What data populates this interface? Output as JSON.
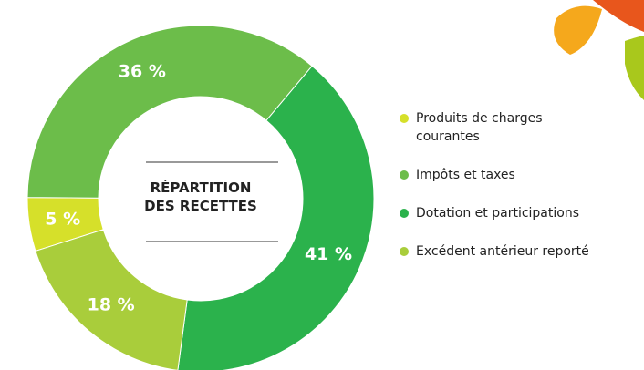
{
  "chart_data": {
    "type": "donut",
    "title": "RÉPARTITION\nDES RECETTES",
    "categories": [
      "Produits de charges\ncourantes",
      "Impôts et taxes",
      "Dotation et participations",
      "Excédent antérieur reporté"
    ],
    "values": [
      5,
      36,
      41,
      18
    ],
    "value_labels": [
      "5 %",
      "36 %",
      "41 %",
      "18 %"
    ],
    "colors": [
      "#d6e02a",
      "#6cbd4a",
      "#2bb24c",
      "#a9cd3b"
    ]
  }
}
